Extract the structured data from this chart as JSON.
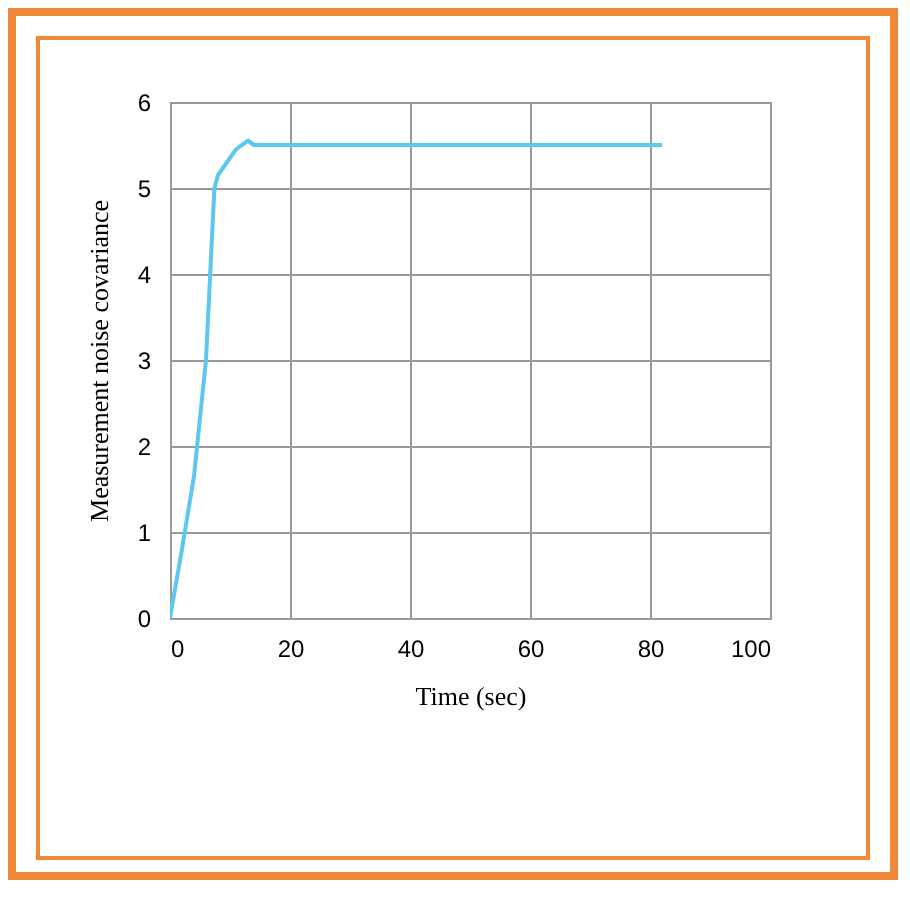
{
  "chart_data": {
    "type": "line",
    "xlabel": "Time (sec)",
    "ylabel": "Measurement noise covariance",
    "x": [
      0,
      2,
      4,
      6,
      7.4,
      8,
      9,
      11,
      13,
      14,
      82
    ],
    "series": [
      {
        "color": "#5bc8f0",
        "values": [
          0,
          0.8,
          1.65,
          3.0,
          5.0,
          5.15,
          5.25,
          5.45,
          5.55,
          5.5,
          5.5
        ]
      }
    ],
    "xlim": [
      0,
      100
    ],
    "xticks": [
      0,
      20,
      40,
      60,
      80,
      100
    ],
    "ylim": [
      0,
      6
    ],
    "yticks": [
      0,
      1,
      2,
      3,
      4,
      5,
      6
    ],
    "grid": true,
    "marker": "none",
    "line_style": "solid"
  }
}
